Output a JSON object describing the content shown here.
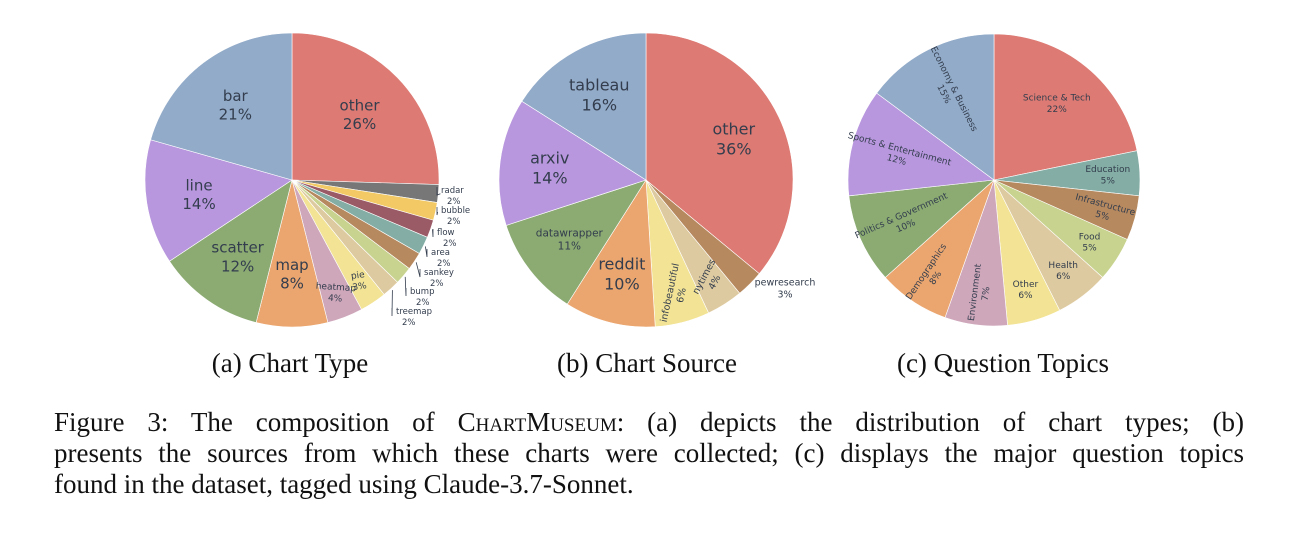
{
  "chart_data": [
    {
      "type": "pie",
      "caption": "(a) Chart Type",
      "slices": [
        {
          "name": "other",
          "value": 26,
          "label": "26%",
          "color": "#dd7a73"
        },
        {
          "name": "radar",
          "value": 2,
          "label": "2%",
          "color": "#777777"
        },
        {
          "name": "bubble",
          "value": 2,
          "label": "2%",
          "color": "#f2c964"
        },
        {
          "name": "flow",
          "value": 2,
          "label": "2%",
          "color": "#9a5a66"
        },
        {
          "name": "area",
          "value": 2,
          "label": "2%",
          "color": "#84aea5"
        },
        {
          "name": "sankey",
          "value": 2,
          "label": "2%",
          "color": "#b6895f"
        },
        {
          "name": "bump",
          "value": 2,
          "label": "2%",
          "color": "#c8d38f"
        },
        {
          "name": "treemap",
          "value": 2,
          "label": "2%",
          "color": "#decaa0"
        },
        {
          "name": "pie",
          "value": 3,
          "label": "3%",
          "color": "#f2e395"
        },
        {
          "name": "heatmap",
          "value": 4,
          "label": "4%",
          "color": "#cfa7bb"
        },
        {
          "name": "map",
          "value": 8,
          "label": "8%",
          "color": "#eba66f"
        },
        {
          "name": "scatter",
          "value": 12,
          "label": "12%",
          "color": "#8bab73"
        },
        {
          "name": "line",
          "value": 14,
          "label": "14%",
          "color": "#b897de"
        },
        {
          "name": "bar",
          "value": 21,
          "label": "21%",
          "color": "#92abc9"
        }
      ]
    },
    {
      "type": "pie",
      "caption": "(b) Chart Source",
      "slices": [
        {
          "name": "other",
          "value": 36,
          "label": "36%",
          "color": "#dd7a73"
        },
        {
          "name": "pewresearch",
          "value": 3,
          "label": "3%",
          "color": "#b6895f"
        },
        {
          "name": "nytimes",
          "value": 4,
          "label": "4%",
          "color": "#decaa0"
        },
        {
          "name": "infobeautiful",
          "value": 6,
          "label": "6%",
          "color": "#f2e395"
        },
        {
          "name": "reddit",
          "value": 10,
          "label": "10%",
          "color": "#eba66f"
        },
        {
          "name": "datawrapper",
          "value": 11,
          "label": "11%",
          "color": "#8bab73"
        },
        {
          "name": "arxiv",
          "value": 14,
          "label": "14%",
          "color": "#b897de"
        },
        {
          "name": "tableau",
          "value": 16,
          "label": "16%",
          "color": "#92abc9"
        }
      ]
    },
    {
      "type": "pie",
      "caption": "(c) Question Topics",
      "slices": [
        {
          "name": "Science & Tech",
          "value": 22,
          "label": "22%",
          "color": "#dd7a73"
        },
        {
          "name": "Education",
          "value": 5,
          "label": "5%",
          "color": "#84aea5"
        },
        {
          "name": "Infrastructure",
          "value": 5,
          "label": "5%",
          "color": "#b6895f"
        },
        {
          "name": "Food",
          "value": 5,
          "label": "5%",
          "color": "#c8d38f"
        },
        {
          "name": "Health",
          "value": 6,
          "label": "6%",
          "color": "#decaa0"
        },
        {
          "name": "Other",
          "value": 6,
          "label": "6%",
          "color": "#f2e395"
        },
        {
          "name": "Environment",
          "value": 7,
          "label": "7%",
          "color": "#cfa7bb"
        },
        {
          "name": "Demographics",
          "value": 8,
          "label": "8%",
          "color": "#eba66f"
        },
        {
          "name": "Politics & Government",
          "value": 10,
          "label": "10%",
          "color": "#8bab73"
        },
        {
          "name": "Sports & Entertainment",
          "value": 12,
          "label": "12%",
          "color": "#b897de"
        },
        {
          "name": "Economy & Business",
          "value": 15,
          "label": "15%",
          "color": "#92abc9"
        }
      ]
    }
  ],
  "figure_caption": {
    "prefix": "Figure 3: The composition of ",
    "name": "ChartMuseum",
    "line1_rest": ": (a) depicts the distribution of chart types; (b)",
    "line2": "presents the sources from which these charts were collected; (c) displays the major question topics",
    "line3": "found in the dataset, tagged using Claude-3.7-Sonnet."
  }
}
